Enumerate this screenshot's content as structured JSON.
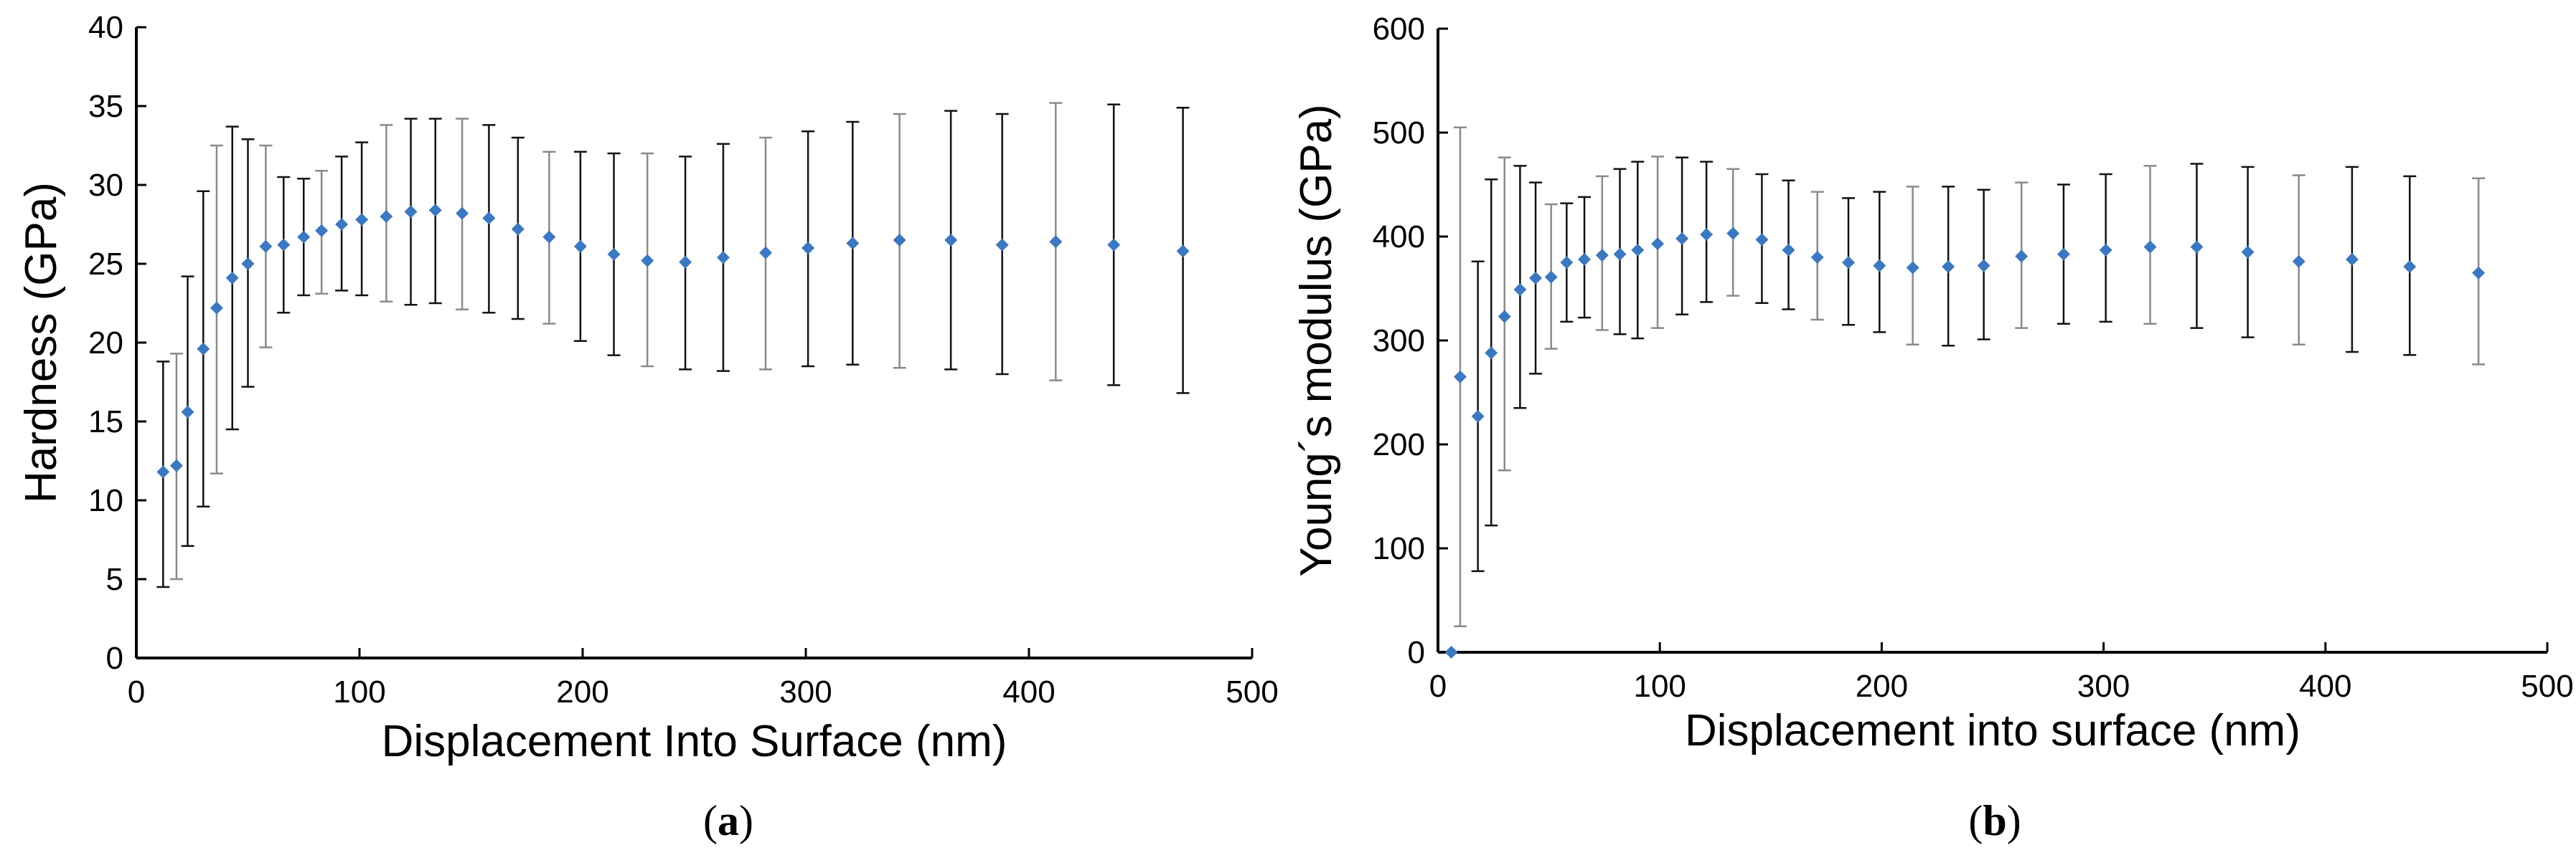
{
  "chart_data": [
    {
      "type": "scatter",
      "panel_label": "a",
      "xlabel": "Displacement Into Surface (nm)",
      "ylabel": "Hardness (GPa)",
      "xlim": [
        0,
        500
      ],
      "ylim": [
        0,
        40
      ],
      "xticks": [
        "0",
        "100",
        "200",
        "300",
        "400",
        "500"
      ],
      "yticks": [
        "0",
        "5",
        "10",
        "15",
        "20",
        "25",
        "30",
        "35",
        "40"
      ],
      "grid": false,
      "marker_color": "#3B78BF",
      "x": [
        12,
        18,
        23,
        30,
        36,
        43,
        50,
        58,
        66,
        75,
        83,
        92,
        101,
        112,
        123,
        134,
        146,
        158,
        171,
        185,
        199,
        214,
        229,
        246,
        263,
        282,
        301,
        321,
        342,
        365,
        388,
        412,
        438,
        469
      ],
      "y": [
        11.8,
        12.2,
        15.6,
        19.6,
        22.2,
        24.1,
        25.0,
        26.1,
        26.2,
        26.7,
        27.1,
        27.5,
        27.8,
        28.0,
        28.3,
        28.4,
        28.2,
        27.9,
        27.2,
        26.7,
        26.1,
        25.6,
        25.2,
        25.1,
        25.4,
        25.7,
        26.0,
        26.3,
        26.5,
        26.5,
        26.2,
        26.4,
        26.2,
        25.8
      ],
      "y_err_low": [
        4.5,
        5.0,
        7.1,
        9.6,
        11.7,
        14.5,
        17.2,
        19.7,
        21.9,
        23.0,
        23.1,
        23.3,
        23.0,
        22.6,
        22.4,
        22.5,
        22.1,
        21.9,
        21.5,
        21.2,
        20.1,
        19.2,
        18.5,
        18.3,
        18.2,
        18.3,
        18.5,
        18.6,
        18.4,
        18.3,
        18.0,
        17.6,
        17.3,
        16.8
      ],
      "y_err_high": [
        18.8,
        19.3,
        24.2,
        29.6,
        32.5,
        33.7,
        32.9,
        32.5,
        30.5,
        30.4,
        30.9,
        31.8,
        32.7,
        33.8,
        34.2,
        34.2,
        34.2,
        33.8,
        33.0,
        32.1,
        32.1,
        32.0,
        32.0,
        31.8,
        32.6,
        33.0,
        33.4,
        34.0,
        34.5,
        34.7,
        34.5,
        35.2,
        35.1,
        34.9
      ]
    },
    {
      "type": "scatter",
      "panel_label": "b",
      "xlabel": "Displacement into surface (nm)",
      "ylabel": "Young´s modulus (GPa)",
      "xlim": [
        0,
        500
      ],
      "ylim": [
        0,
        600
      ],
      "xticks": [
        "0",
        "100",
        "200",
        "300",
        "400",
        "500"
      ],
      "yticks": [
        "0",
        "100",
        "200",
        "300",
        "400",
        "500",
        "600"
      ],
      "grid": false,
      "marker_color": "#3B78BF",
      "x": [
        6,
        10,
        18,
        24,
        30,
        37,
        44,
        51,
        58,
        66,
        74,
        82,
        90,
        99,
        110,
        121,
        133,
        146,
        158,
        171,
        185,
        199,
        214,
        230,
        246,
        263,
        282,
        301,
        321,
        342,
        365,
        388,
        412,
        438,
        469
      ],
      "y": [
        0,
        265,
        227,
        288,
        323,
        349,
        360,
        361,
        375,
        378,
        382,
        383,
        387,
        393,
        398,
        402,
        403,
        397,
        387,
        380,
        375,
        372,
        370,
        371,
        372,
        381,
        383,
        387,
        390,
        390,
        385,
        376,
        378,
        371,
        365
      ],
      "y_err_low": [
        0,
        25,
        78,
        122,
        175,
        235,
        268,
        292,
        318,
        322,
        310,
        306,
        302,
        312,
        325,
        337,
        343,
        336,
        330,
        320,
        315,
        308,
        296,
        295,
        301,
        312,
        316,
        318,
        316,
        312,
        303,
        296,
        289,
        286,
        277
      ],
      "y_err_high": [
        0,
        505,
        376,
        455,
        476,
        468,
        452,
        431,
        432,
        438,
        458,
        465,
        472,
        477,
        476,
        472,
        465,
        460,
        454,
        443,
        437,
        443,
        448,
        448,
        445,
        452,
        450,
        460,
        468,
        470,
        467,
        459,
        467,
        458,
        456
      ]
    }
  ]
}
